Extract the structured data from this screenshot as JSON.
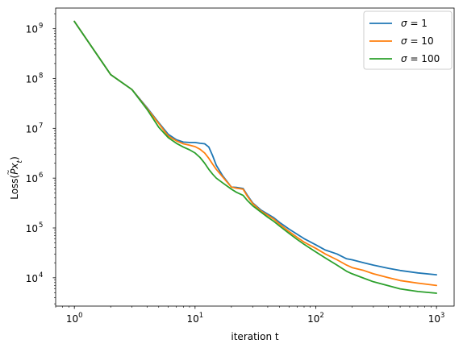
{
  "chart_data": {
    "type": "line",
    "xlabel": "iteration t",
    "ylabel_prefix": "Loss(",
    "ylabel_var": "Px",
    "ylabel_var_mark": "~",
    "ylabel_sub": "t",
    "ylabel_suffix": ")",
    "x_scale": "log",
    "y_scale": "log",
    "xlim": [
      0.7,
      1400
    ],
    "ylim": [
      2700,
      2600000000.0
    ],
    "grid": false,
    "legend_position": "top-right",
    "x_ticks": [
      {
        "value": 1,
        "base": "10",
        "exp": "0"
      },
      {
        "value": 10,
        "base": "10",
        "exp": "1"
      },
      {
        "value": 100,
        "base": "10",
        "exp": "2"
      },
      {
        "value": 1000,
        "base": "10",
        "exp": "3"
      }
    ],
    "y_ticks": [
      {
        "value": 10000,
        "base": "10",
        "exp": "4"
      },
      {
        "value": 100000,
        "base": "10",
        "exp": "5"
      },
      {
        "value": 1000000,
        "base": "10",
        "exp": "6"
      },
      {
        "value": 10000000,
        "base": "10",
        "exp": "7"
      },
      {
        "value": 100000000,
        "base": "10",
        "exp": "8"
      },
      {
        "value": 1000000000,
        "base": "10",
        "exp": "9"
      }
    ],
    "series": [
      {
        "name": "σ = 1",
        "symbol": "σ",
        "rhs": "= 1",
        "color": "#1f77b4",
        "x": [
          1,
          2,
          3,
          4,
          5,
          6,
          7,
          8,
          9,
          10,
          11,
          12,
          13,
          14,
          15,
          17,
          20,
          22,
          25,
          27,
          30,
          35,
          40,
          45,
          50,
          60,
          70,
          80,
          100,
          120,
          150,
          180,
          200,
          250,
          300,
          400,
          500,
          700,
          1000
        ],
        "y": [
          1400000000.0,
          120000000.0,
          60000000.0,
          26000000.0,
          13000000.0,
          7600000.0,
          5900000.0,
          5300000.0,
          5200000.0,
          5200000.0,
          5000000.0,
          4900000.0,
          4200000.0,
          2800000.0,
          1800000.0,
          1100000.0,
          660000.0,
          650000.0,
          620000.0,
          460000.0,
          320000.0,
          230000.0,
          190000.0,
          160000.0,
          130000.0,
          95000.0,
          75000.0,
          61000.0,
          46000.0,
          36000.0,
          30000.0,
          24000.0,
          23000.0,
          20000.0,
          18000.0,
          15500.0,
          14000.0,
          12500.0,
          11500.0
        ]
      },
      {
        "name": "σ = 10",
        "symbol": "σ",
        "rhs": "= 10",
        "color": "#ff7f0e",
        "x": [
          1,
          2,
          3,
          4,
          5,
          6,
          7,
          8,
          9,
          10,
          11,
          12,
          13,
          14,
          15,
          17,
          20,
          22,
          25,
          27,
          30,
          35,
          40,
          45,
          50,
          60,
          70,
          80,
          100,
          120,
          150,
          180,
          200,
          250,
          300,
          400,
          500,
          700,
          1000
        ],
        "y": [
          1400000000.0,
          120000000.0,
          60000000.0,
          25000000.0,
          12500000.0,
          7000000.0,
          5600000.0,
          4900000.0,
          4600000.0,
          4300000.0,
          3800000.0,
          3200000.0,
          2500000.0,
          1900000.0,
          1500000.0,
          1050000.0,
          660000.0,
          630000.0,
          600000.0,
          440000.0,
          310000.0,
          220000.0,
          180000.0,
          150000.0,
          120000.0,
          85000.0,
          65000.0,
          52000.0,
          39000.0,
          30000.0,
          23000.0,
          18000.0,
          16000.0,
          14000.0,
          12000.0,
          10000.0,
          8800.0,
          7800.0,
          7000.0
        ]
      },
      {
        "name": "σ = 100",
        "symbol": "σ",
        "rhs": "= 100",
        "color": "#2ca02c",
        "x": [
          1,
          2,
          3,
          4,
          5,
          6,
          7,
          8,
          9,
          10,
          11,
          12,
          13,
          14,
          15,
          17,
          20,
          22,
          25,
          27,
          30,
          35,
          40,
          45,
          50,
          60,
          70,
          80,
          100,
          120,
          150,
          180,
          200,
          250,
          300,
          400,
          500,
          700,
          1000
        ],
        "y": [
          1400000000.0,
          120000000.0,
          60000000.0,
          24000000.0,
          10500000.0,
          6500000.0,
          5000000.0,
          4200000.0,
          3700000.0,
          3200000.0,
          2600000.0,
          2000000.0,
          1500000.0,
          1200000.0,
          1000000.0,
          800000.0,
          600000.0,
          520000.0,
          450000.0,
          360000.0,
          280000.0,
          210000.0,
          165000.0,
          135000.0,
          110000.0,
          78000.0,
          59000.0,
          47000.0,
          33000.0,
          25000.0,
          18000.0,
          13500.0,
          12000.0,
          9800.0,
          8300.0,
          6900.0,
          6000.0,
          5300.0,
          4900.0
        ]
      }
    ]
  }
}
